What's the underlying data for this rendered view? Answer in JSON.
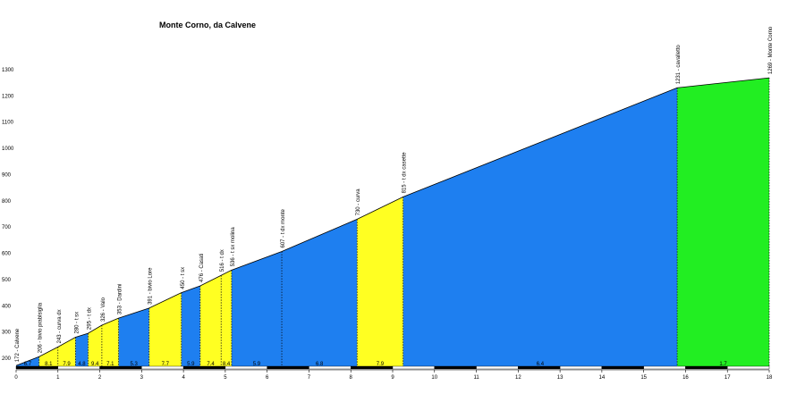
{
  "chart_data": {
    "type": "area",
    "title": "Monte Corno, da Calvene",
    "xlabel": "",
    "ylabel": "",
    "xlim": [
      0,
      18
    ],
    "ylim": [
      150,
      1300
    ],
    "x_ticks": [
      "0",
      "1",
      "2",
      "3",
      "4",
      "5",
      "6",
      "7",
      "8",
      "9",
      "10",
      "11",
      "12",
      "13",
      "14",
      "15",
      "16",
      "17",
      "18"
    ],
    "y_ticks": [
      "1300",
      "1200",
      "1100",
      "1000",
      "900",
      "800",
      "700",
      "600",
      "500",
      "400",
      "300",
      "200"
    ],
    "points": [
      {
        "x": 0,
        "y": 172
      },
      {
        "x": 0.55,
        "y": 206
      },
      {
        "x": 1.0,
        "y": 243
      },
      {
        "x": 1.42,
        "y": 280
      },
      {
        "x": 1.72,
        "y": 295
      },
      {
        "x": 2.05,
        "y": 326
      },
      {
        "x": 2.45,
        "y": 353
      },
      {
        "x": 3.18,
        "y": 391
      },
      {
        "x": 3.95,
        "y": 450
      },
      {
        "x": 4.4,
        "y": 476
      },
      {
        "x": 4.9,
        "y": 516
      },
      {
        "x": 5.15,
        "y": 536
      },
      {
        "x": 6.35,
        "y": 607
      },
      {
        "x": 8.15,
        "y": 730
      },
      {
        "x": 9.25,
        "y": 815
      },
      {
        "x": 15.8,
        "y": 1231
      },
      {
        "x": 18.0,
        "y": 1269
      }
    ],
    "annotations": [
      {
        "x": 0,
        "label": "172 - Calvene"
      },
      {
        "x": 0.55,
        "label": "206 - bivio prablsiglia"
      },
      {
        "x": 1.0,
        "label": "243 - curva dx"
      },
      {
        "x": 1.42,
        "label": "280 - t sx"
      },
      {
        "x": 1.72,
        "label": "295 - t dx"
      },
      {
        "x": 2.05,
        "label": "326 - Valo"
      },
      {
        "x": 2.45,
        "label": "353 - Dardini"
      },
      {
        "x": 3.18,
        "label": "391 - bivio Lore"
      },
      {
        "x": 3.95,
        "label": "450 - t sx"
      },
      {
        "x": 4.4,
        "label": "476 - Casati"
      },
      {
        "x": 4.9,
        "label": "516 - t dx"
      },
      {
        "x": 5.15,
        "label": "536 - t sx molina"
      },
      {
        "x": 6.35,
        "label": "607 - t dx monte"
      },
      {
        "x": 8.15,
        "label": "730 - curva"
      },
      {
        "x": 9.25,
        "label": "815 - t dx casette"
      },
      {
        "x": 15.8,
        "label": "1231 - cavalletto"
      },
      {
        "x": 18.0,
        "label": "1269 - Monte Corno"
      }
    ],
    "segments": [
      {
        "x0": 0,
        "x1": 0.55,
        "gradient": "6.7",
        "color": "blue"
      },
      {
        "x0": 0.55,
        "x1": 1.0,
        "gradient": "8.1",
        "color": "yellow"
      },
      {
        "x0": 1.0,
        "x1": 1.42,
        "gradient": "7.9",
        "color": "yellow"
      },
      {
        "x0": 1.42,
        "x1": 1.72,
        "gradient": "4.8",
        "color": "blue"
      },
      {
        "x0": 1.72,
        "x1": 2.05,
        "gradient": "9.4",
        "color": "yellow"
      },
      {
        "x0": 2.05,
        "x1": 2.45,
        "gradient": "7.1",
        "color": "yellow"
      },
      {
        "x0": 2.45,
        "x1": 3.18,
        "gradient": "5.3",
        "color": "blue"
      },
      {
        "x0": 3.18,
        "x1": 3.95,
        "gradient": "7.7",
        "color": "yellow"
      },
      {
        "x0": 3.95,
        "x1": 4.4,
        "gradient": "5.9",
        "color": "blue"
      },
      {
        "x0": 4.4,
        "x1": 4.9,
        "gradient": "7.4",
        "color": "yellow"
      },
      {
        "x0": 4.9,
        "x1": 5.15,
        "gradient": "8.4",
        "color": "yellow"
      },
      {
        "x0": 5.15,
        "x1": 6.35,
        "gradient": "5.9",
        "color": "blue"
      },
      {
        "x0": 6.35,
        "x1": 8.15,
        "gradient": "6.8",
        "color": "blue"
      },
      {
        "x0": 8.15,
        "x1": 9.25,
        "gradient": "7.9",
        "color": "yellow"
      },
      {
        "x0": 9.25,
        "x1": 15.8,
        "gradient": "6.4",
        "color": "blue"
      },
      {
        "x0": 15.8,
        "x1": 18.0,
        "gradient": "1.7",
        "color": "green"
      }
    ],
    "colors": {
      "blue": "#1e7ff0",
      "yellow": "#ffff22",
      "green": "#22ee22",
      "axis": "#000000"
    }
  }
}
